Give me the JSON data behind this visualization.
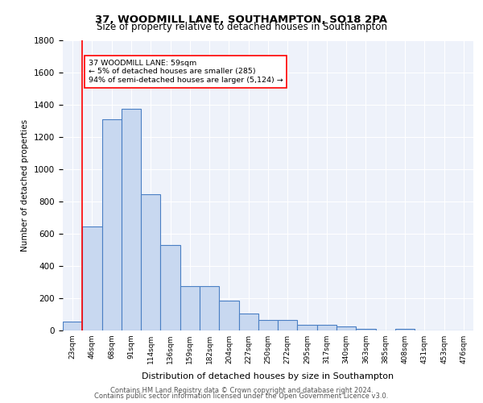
{
  "title_line1": "37, WOODMILL LANE, SOUTHAMPTON, SO18 2PA",
  "title_line2": "Size of property relative to detached houses in Southampton",
  "xlabel": "Distribution of detached houses by size in Southampton",
  "ylabel": "Number of detached properties",
  "footer_line1": "Contains HM Land Registry data © Crown copyright and database right 2024.",
  "footer_line2": "Contains public sector information licensed under the Open Government Licence v3.0.",
  "annotation_line1": "37 WOODMILL LANE: 59sqm",
  "annotation_line2": "← 5% of detached houses are smaller (285)",
  "annotation_line3": "94% of semi-detached houses are larger (5,124) →",
  "bar_values": [
    55,
    645,
    1310,
    1375,
    845,
    530,
    275,
    275,
    185,
    103,
    65,
    65,
    35,
    35,
    25,
    10,
    0,
    10,
    0,
    0,
    0
  ],
  "bin_labels": [
    "23sqm",
    "46sqm",
    "68sqm",
    "91sqm",
    "114sqm",
    "136sqm",
    "159sqm",
    "182sqm",
    "204sqm",
    "227sqm",
    "250sqm",
    "272sqm",
    "295sqm",
    "317sqm",
    "340sqm",
    "363sqm",
    "385sqm",
    "408sqm",
    "431sqm",
    "453sqm",
    "476sqm"
  ],
  "bar_color": "#c8d8f0",
  "bar_edge_color": "#4a7fc4",
  "bg_color": "#eef2fa",
  "grid_color": "#ffffff",
  "red_line_x": 1.0,
  "ylim": [
    0,
    1800
  ],
  "yticks": [
    0,
    200,
    400,
    600,
    800,
    1000,
    1200,
    1400,
    1600,
    1800
  ]
}
